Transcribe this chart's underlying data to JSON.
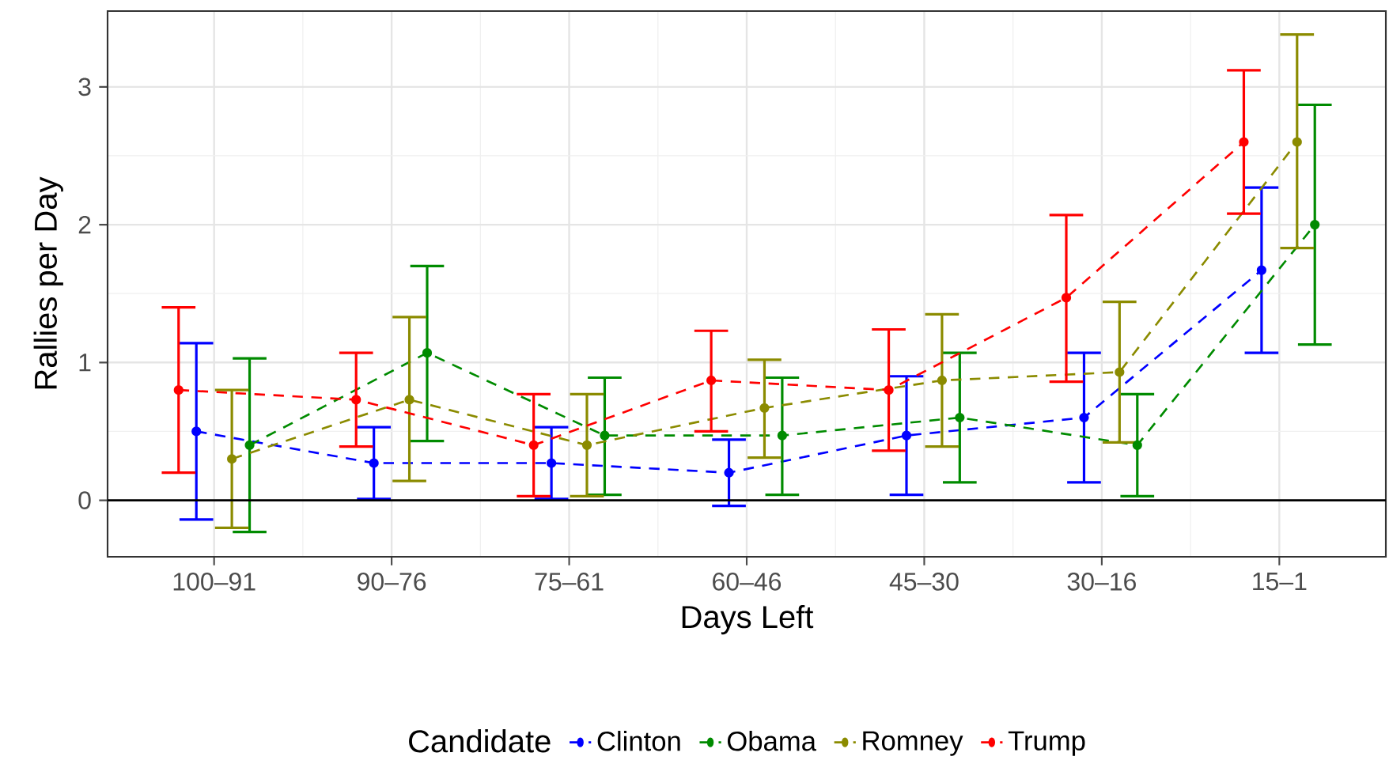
{
  "chart_data": {
    "type": "line",
    "xlabel": "Days Left",
    "ylabel": "Rallies per Day",
    "legend_title": "Candidate",
    "categories": [
      "100–91",
      "90–76",
      "75–61",
      "60–46",
      "45–30",
      "30–16",
      "15–1"
    ],
    "series": [
      {
        "name": "Clinton",
        "color": "#0000ff",
        "values": [
          0.5,
          0.27,
          0.27,
          0.2,
          0.47,
          0.6,
          1.67
        ],
        "errors": [
          [
            -0.14,
            1.14
          ],
          [
            0.01,
            0.53
          ],
          [
            0.01,
            0.53
          ],
          [
            -0.04,
            0.44
          ],
          [
            0.04,
            0.9
          ],
          [
            0.13,
            1.07
          ],
          [
            1.07,
            2.27
          ]
        ]
      },
      {
        "name": "Obama",
        "color": "#008b00",
        "values": [
          0.4,
          1.07,
          0.47,
          0.47,
          0.6,
          0.4,
          2.0
        ],
        "errors": [
          [
            -0.23,
            1.03
          ],
          [
            0.43,
            1.7
          ],
          [
            0.04,
            0.89
          ],
          [
            0.04,
            0.89
          ],
          [
            0.13,
            1.07
          ],
          [
            0.03,
            0.77
          ],
          [
            1.13,
            2.87
          ]
        ]
      },
      {
        "name": "Romney",
        "color": "#8b8b00",
        "values": [
          0.3,
          0.73,
          0.4,
          0.67,
          0.87,
          0.93,
          2.6
        ],
        "errors": [
          [
            -0.2,
            0.8
          ],
          [
            0.14,
            1.33
          ],
          [
            0.03,
            0.77
          ],
          [
            0.31,
            1.02
          ],
          [
            0.39,
            1.35
          ],
          [
            0.42,
            1.44
          ],
          [
            1.83,
            3.38
          ]
        ]
      },
      {
        "name": "Trump",
        "color": "#ff0000",
        "values": [
          0.8,
          0.73,
          0.4,
          0.87,
          0.8,
          1.47,
          2.6
        ],
        "errors": [
          [
            0.2,
            1.4
          ],
          [
            0.39,
            1.07
          ],
          [
            0.03,
            0.77
          ],
          [
            0.5,
            1.23
          ],
          [
            0.36,
            1.24
          ],
          [
            0.86,
            2.07
          ],
          [
            2.08,
            3.12
          ]
        ]
      }
    ],
    "ylim": [
      -0.41,
      3.55
    ],
    "yticks": [
      0,
      1,
      2,
      3
    ],
    "grid": true,
    "legend": "bottom",
    "marker": "circle",
    "line_style": "dashed",
    "ref_lines": [
      {
        "axis": "y",
        "value": 0,
        "color": "#000000"
      }
    ]
  }
}
